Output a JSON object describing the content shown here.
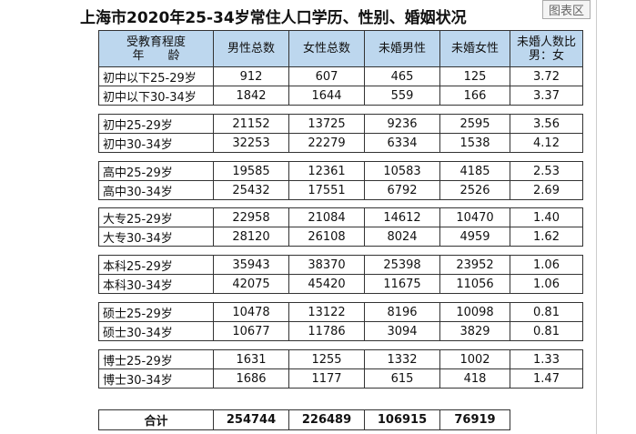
{
  "title": "上海市2020年25-34岁常住人口学历、性别、婚姻状况",
  "tag": "图表区",
  "table": {
    "header": [
      [
        "受教育程度",
        "年　　龄"
      ],
      [
        "男性总数"
      ],
      [
        "女性总数"
      ],
      [
        "未婚男性"
      ],
      [
        "未婚女性"
      ],
      [
        "未婚人数比",
        "男：女"
      ]
    ],
    "groups": [
      [
        [
          "初中以下25-29岁",
          "912",
          "607",
          "465",
          "125",
          "3.72"
        ],
        [
          "初中以下30-34岁",
          "1842",
          "1644",
          "559",
          "166",
          "3.37"
        ]
      ],
      [
        [
          "初中25-29岁",
          "21152",
          "13725",
          "9236",
          "2595",
          "3.56"
        ],
        [
          "初中30-34岁",
          "32253",
          "22279",
          "6334",
          "1538",
          "4.12"
        ]
      ],
      [
        [
          "高中25-29岁",
          "19585",
          "12361",
          "10583",
          "4185",
          "2.53"
        ],
        [
          "高中30-34岁",
          "25432",
          "17551",
          "6792",
          "2526",
          "2.69"
        ]
      ],
      [
        [
          "大专25-29岁",
          "22958",
          "21084",
          "14612",
          "10470",
          "1.40"
        ],
        [
          "大专30-34岁",
          "28120",
          "26108",
          "8024",
          "4959",
          "1.62"
        ]
      ],
      [
        [
          "本科25-29岁",
          "35943",
          "38370",
          "25398",
          "23952",
          "1.06"
        ],
        [
          "本科30-34岁",
          "42075",
          "45420",
          "11675",
          "11056",
          "1.06"
        ]
      ],
      [
        [
          "硕士25-29岁",
          "10478",
          "13122",
          "8196",
          "10098",
          "0.81"
        ],
        [
          "硕士30-34岁",
          "10677",
          "11786",
          "3094",
          "3829",
          "0.81"
        ]
      ],
      [
        [
          "博士25-29岁",
          "1631",
          "1255",
          "1332",
          "1002",
          "1.33"
        ],
        [
          "博士30-34岁",
          "1686",
          "1177",
          "615",
          "418",
          "1.47"
        ]
      ]
    ],
    "total": [
      "合计",
      "254744",
      "226489",
      "106915",
      "76919"
    ]
  }
}
